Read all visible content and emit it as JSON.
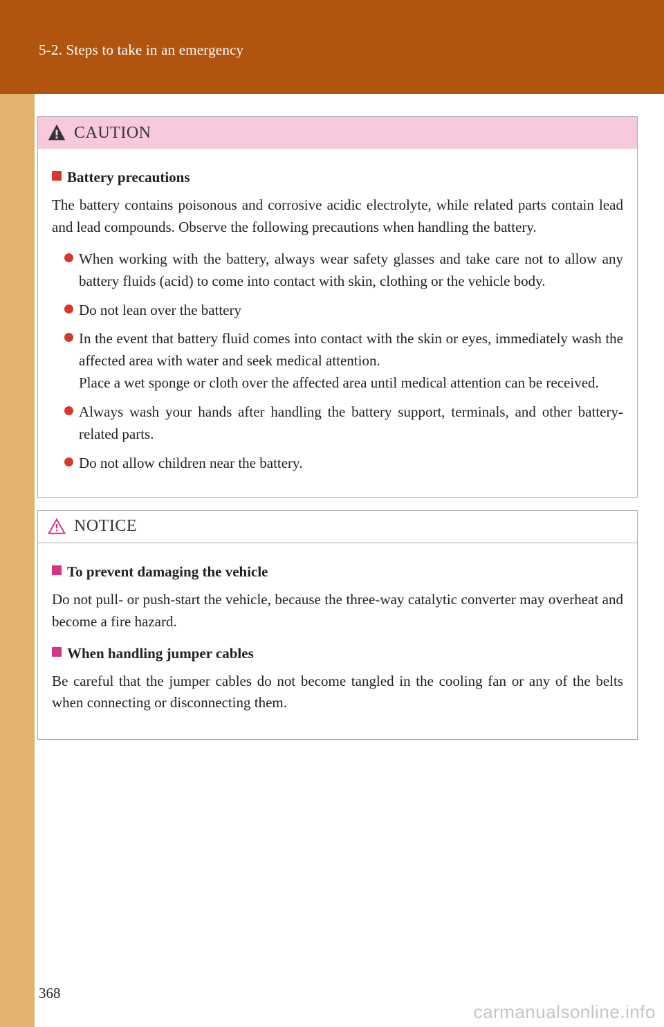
{
  "page": {
    "section_title": "5-2. Steps to take in an emergency",
    "number": "368",
    "watermark": "carmanualsonline.info"
  },
  "colors": {
    "header_band": "#b15410",
    "side_band": "#e1b36f",
    "caution_head_bg": "#f7c9dd",
    "box_border": "#a9a9a9",
    "square_red": "#d9372b",
    "square_magenta": "#d63384",
    "bullet_dot": "#d9372b",
    "caution_icon_fill": "#333333",
    "notice_icon_stroke": "#d63384"
  },
  "caution": {
    "label": "CAUTION",
    "icon_name": "warning-icon",
    "sub": {
      "heading": "Battery precautions",
      "intro": "The battery contains poisonous and corrosive acidic electrolyte, while related parts contain lead and lead compounds. Observe the following precautions when handling the battery.",
      "bullets": [
        "When working with the battery, always wear safety glasses and take care not to allow any battery fluids (acid) to come into contact with skin, clothing or the vehicle body.",
        "Do not lean over the battery",
        "In the event that battery fluid comes into contact with the skin or eyes, immediately wash the affected area with water and seek medical attention.\nPlace a wet sponge or cloth over the affected area until medical attention can be received.",
        "Always wash your hands after handling the battery support, terminals, and other battery-related parts.",
        "Do not allow children near the battery."
      ]
    }
  },
  "notice": {
    "label": "NOTICE",
    "icon_name": "notice-icon",
    "subs": [
      {
        "heading": "To prevent damaging the vehicle",
        "text": "Do not pull- or push-start the vehicle, because the three-way catalytic converter may overheat and become a fire hazard."
      },
      {
        "heading": "When handling jumper cables",
        "text": "Be careful that the jumper cables do not become tangled in the cooling fan or any of the belts when connecting or disconnecting them."
      }
    ]
  }
}
